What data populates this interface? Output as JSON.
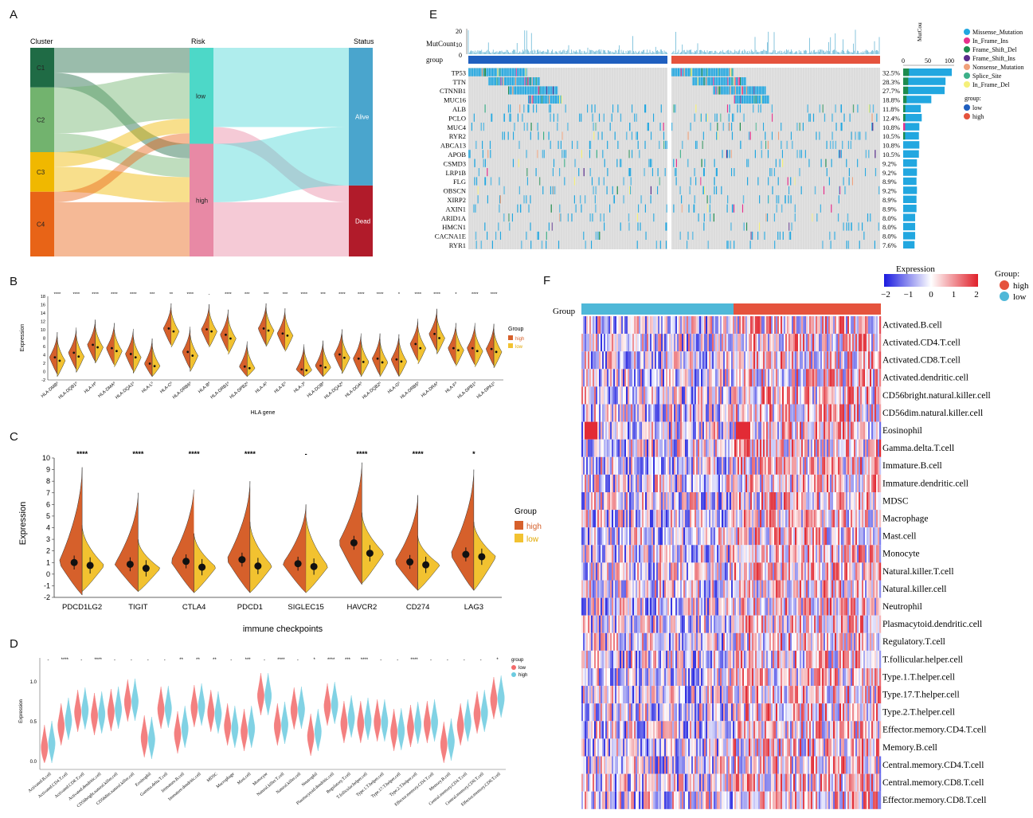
{
  "panel_letters": {
    "a": "A",
    "b": "B",
    "c": "C",
    "d": "D",
    "e": "E",
    "f": "F"
  },
  "colors": {
    "high_orange": "#d6602b",
    "low_yellow": "#f2c230",
    "low_red": "#f26b6b",
    "high_blue": "#6ccbe0",
    "tcga_blue": "#1f5fbf",
    "tcga_red": "#e5533d",
    "heat_low": "#1a1adf",
    "heat_mid": "#ffffff",
    "heat_high": "#e0202a"
  },
  "chart_data": [
    {
      "id": "A",
      "type": "sankey",
      "axes": {
        "left": "Cluster",
        "mid": "Risk",
        "right": "Status"
      },
      "nodes": {
        "cluster": [
          {
            "name": "C1",
            "share": 0.19,
            "color": "#1f6b45"
          },
          {
            "name": "C2",
            "share": 0.31,
            "color": "#72b36e"
          },
          {
            "name": "C3",
            "share": 0.19,
            "color": "#f0b800"
          },
          {
            "name": "C4",
            "share": 0.31,
            "color": "#e86417"
          }
        ],
        "risk": [
          {
            "name": "low",
            "share": 0.46,
            "color": "#4dd8c8"
          },
          {
            "name": "high",
            "share": 0.54,
            "color": "#e889a5"
          }
        ],
        "status": [
          {
            "name": "Alive",
            "share": 0.66,
            "color": "#4aa5cd"
          },
          {
            "name": "Dead",
            "share": 0.34,
            "color": "#b11b2a"
          }
        ]
      }
    },
    {
      "id": "B",
      "type": "violin",
      "xlabel": "HLA gene",
      "ylabel": "Expression",
      "ylim": [
        -2,
        18
      ],
      "yticks": [
        -2,
        0,
        2,
        4,
        6,
        8,
        10,
        12,
        14,
        16,
        18
      ],
      "legend_title": "Group",
      "legend": [
        "high",
        "low"
      ],
      "genes": [
        "HLA-DMB",
        "HLA-DQB1",
        "HLA-H",
        "HLA-DMA",
        "HLA-DQA1",
        "HLA-L",
        "HLA-C",
        "HLA-DRB6",
        "HLA-B",
        "HLA-DRB1",
        "HLA-DPB2",
        "HLA-A",
        "HLA-E",
        "HLA-J",
        "HLA-DOB",
        "HLA-DQA2",
        "HLA-DOA",
        "HLA-DQB2",
        "HLA-G",
        "HLA-DRB5",
        "HLA-DRA",
        "HLA-F",
        "HLA-DPB1",
        "HLA-DPA1"
      ],
      "gene_labels": [
        "HLA-DMBº",
        "HLA-DQB1º",
        "HLA-Hº",
        "HLA-DMAº",
        "HLA-DQA1º",
        "HLA-Lº",
        "HLA-Cº",
        "HLA-DRB6º",
        "HLA-Bº",
        "HLA-DRB1º",
        "HLA-DPB2º",
        "HLA-Aº",
        "HLA-Eº",
        "HLA-Jº",
        "HLA-DOBº",
        "HLA-DQA2º",
        "HLA-DOAº",
        "HLA-DQB2º",
        "HLA-Gº",
        "HLA-DRB5º",
        "HLA-DRAº",
        "HLA-Fº",
        "HLA-DPB1º",
        "HLA-DPA1º"
      ],
      "signif": [
        "****",
        "****",
        "****",
        "****",
        "****",
        "***",
        "**",
        "****",
        "-",
        "****",
        "***",
        "***",
        "***",
        "****",
        "***",
        "****",
        "****",
        "****",
        "*",
        "****",
        "****",
        "*",
        "****",
        "****"
      ],
      "high_median": [
        3.4,
        4.5,
        6.4,
        5.6,
        4.2,
        1.9,
        10.3,
        4.7,
        10.1,
        8.8,
        1.2,
        10.3,
        9.1,
        0.5,
        1.4,
        4.1,
        3.1,
        3.1,
        2.9,
        6.6,
        9.0,
        5.6,
        5.6,
        5.4
      ],
      "low_median": [
        2.6,
        3.6,
        5.8,
        4.9,
        3.4,
        1.3,
        9.6,
        3.8,
        9.6,
        7.9,
        0.8,
        9.8,
        8.6,
        0.3,
        1.0,
        3.3,
        2.3,
        2.2,
        2.4,
        5.6,
        8.0,
        5.1,
        4.9,
        4.7
      ]
    },
    {
      "id": "C",
      "type": "violin",
      "xlabel": "immune checkpoints",
      "ylabel": "Expression",
      "ylim": [
        -2,
        10
      ],
      "yticks": [
        -2,
        -1,
        0,
        1,
        2,
        3,
        4,
        5,
        6,
        7,
        8,
        9,
        10
      ],
      "legend_title": "Group",
      "legend": [
        "high",
        "low"
      ],
      "categories": [
        "PDCD1LG2",
        "TIGIT",
        "CTLA4",
        "PDCD1",
        "SIGLEC15",
        "HAVCR2",
        "CD274",
        "LAG3"
      ],
      "signif": [
        "****",
        "****",
        "****",
        "****",
        "-",
        "****",
        "****",
        "*"
      ],
      "high_median": [
        1.0,
        0.85,
        1.1,
        1.25,
        0.9,
        2.7,
        1.05,
        1.7
      ],
      "low_median": [
        0.75,
        0.5,
        0.6,
        0.7,
        0.65,
        1.8,
        0.8,
        1.5
      ],
      "high_max": [
        9.2,
        7.0,
        7.7,
        8.0,
        6.0,
        9.6,
        6.8,
        9.0
      ],
      "low_max": [
        4.2,
        3.0,
        3.5,
        4.5,
        5.2,
        5.3,
        3.3,
        4.5
      ],
      "high_min": [
        -1.8,
        -1.5,
        -1.6,
        -1.6,
        -1.6,
        -0.9,
        -1.4,
        -1.4
      ],
      "low_min": [
        -1.5,
        -1.5,
        -1.6,
        -1.6,
        -1.6,
        -0.8,
        -1.4,
        -1.4
      ]
    },
    {
      "id": "D",
      "type": "violin",
      "ylabel": "Expression",
      "ylim": [
        -0.1,
        1.3
      ],
      "yticks": [
        0.0,
        0.5,
        1.0
      ],
      "ytick_labels": [
        "0.0",
        "0.5",
        "1.0"
      ],
      "legend_title": "group",
      "legend": [
        "low",
        "high"
      ],
      "cells": [
        "Activated.B.cell",
        "Activated.CD4.T.cell",
        "Activated.CD8.T.cell",
        "Activated.dendritic.cell",
        "CD56bright.natural.killer.cell",
        "CD56dim.natural.killer.cell",
        "Eosinophil",
        "Gamma.delta.T.cell",
        "Immature.B.cell",
        "Immature.dendritic.cell",
        "MDSC",
        "Macrophage",
        "Mast.cell",
        "Monocyte",
        "Natural.killer.T.cell",
        "Natural.killer.cell",
        "Neutrophil",
        "Plasmacytoid.dendritic.cell",
        "Regulatory.T.cell",
        "T.follicular.helper.cell",
        "Type.1.T.helper.cell",
        "Type.17.T.helper.cell",
        "Type.2.T.helper.cell",
        "Effector.memory.CD4.T.cell",
        "Memory.B.cell",
        "Central.memory.CD4.T.cell",
        "Central.memory.CD8.T.cell",
        "Effector.memory.CD8.T.cell"
      ],
      "signif": [
        "-",
        "****",
        "-",
        "****",
        "-",
        "-",
        "-",
        "-",
        "**",
        "**",
        "**",
        "-",
        "***",
        "-",
        "****",
        "-",
        "*",
        "****",
        "***",
        "****",
        "-",
        "-",
        "****",
        "-",
        "-",
        "-",
        "-",
        "*"
      ],
      "low_median": [
        0.18,
        0.45,
        0.62,
        0.58,
        0.63,
        0.75,
        0.3,
        0.66,
        0.35,
        0.68,
        0.62,
        0.45,
        0.38,
        0.83,
        0.45,
        0.65,
        0.32,
        0.7,
        0.48,
        0.48,
        0.5,
        0.38,
        0.43,
        0.48,
        0.22,
        0.45,
        0.6,
        0.78
      ],
      "high_median": [
        0.23,
        0.52,
        0.65,
        0.6,
        0.66,
        0.76,
        0.28,
        0.67,
        0.42,
        0.7,
        0.6,
        0.42,
        0.42,
        0.83,
        0.47,
        0.66,
        0.38,
        0.72,
        0.55,
        0.52,
        0.5,
        0.39,
        0.47,
        0.5,
        0.26,
        0.5,
        0.62,
        0.8
      ]
    },
    {
      "id": "E",
      "type": "oncoplot",
      "mutcount_label": "MutCount",
      "mutcount_ticks": [
        "20",
        "10",
        "0"
      ],
      "top_axis_label": "MutCount",
      "bar_ticks": [
        "0",
        "50",
        "100"
      ],
      "group_label": "group",
      "genes": [
        "TP53",
        "TTN",
        "CTNNB1",
        "MUC16",
        "ALB",
        "PCLO",
        "MUC4",
        "RYR2",
        "ABCA13",
        "APOB",
        "CSMD3",
        "LRP1B",
        "FLG",
        "OBSCN",
        "XIRP2",
        "AXIN1",
        "ARID1A",
        "HMCN1",
        "CACNA1E",
        "RYR1"
      ],
      "percent": [
        "32.5%",
        "28.3%",
        "27.7%",
        "18.8%",
        "11.8%",
        "12.4%",
        "10.8%",
        "10.5%",
        "10.8%",
        "10.5%",
        "9.2%",
        "9.2%",
        "8.9%",
        "9.2%",
        "8.9%",
        "8.9%",
        "8.0%",
        "8.0%",
        "8.0%",
        "7.6%"
      ],
      "legend_variants": [
        "Missense_Mutation",
        "In_Frame_Ins",
        "Frame_Shift_Del",
        "Frame_Shift_Ins",
        "Nonsense_Mutation",
        "Splice_Site",
        "In_Frame_Del"
      ],
      "variant_colors": [
        "#22a7e0",
        "#e8308c",
        "#1e8c4e",
        "#5a2d8c",
        "#f0a07a",
        "#3db088",
        "#f5f07a"
      ],
      "legend_group_title": "group:",
      "legend_groups": [
        "low",
        "high"
      ]
    },
    {
      "id": "F",
      "type": "heatmap",
      "legend_title": "Expression",
      "legend_ticks": [
        "−2",
        "−1",
        "0",
        "1",
        "2"
      ],
      "group_title": "Group:",
      "groups": [
        "high",
        "low"
      ],
      "row_group_label": "Group",
      "rows": [
        "Activated.B.cell",
        "Activated.CD4.T.cell",
        "Activated.CD8.T.cell",
        "Activated.dendritic.cell",
        "CD56bright.natural.killer.cell",
        "CD56dim.natural.killer.cell",
        "Eosinophil",
        "Gamma.delta.T.cell",
        "Immature.B.cell",
        "Immature.dendritic.cell",
        "MDSC",
        "Macrophage",
        "Mast.cell",
        "Monocyte",
        "Natural.killer.T.cell",
        "Natural.killer.cell",
        "Neutrophil",
        "Plasmacytoid.dendritic.cell",
        "Regulatory.T.cell",
        "T.follicular.helper.cell",
        "Type.1.T.helper.cell",
        "Type.17.T.helper.cell",
        "Type.2.T.helper.cell",
        "Effector.memory.CD4.T.cell",
        "Memory.B.cell",
        "Central.memory.CD4.T.cell",
        "Central.memory.CD8.T.cell",
        "Effector.memory.CD8.T.cell"
      ]
    }
  ]
}
